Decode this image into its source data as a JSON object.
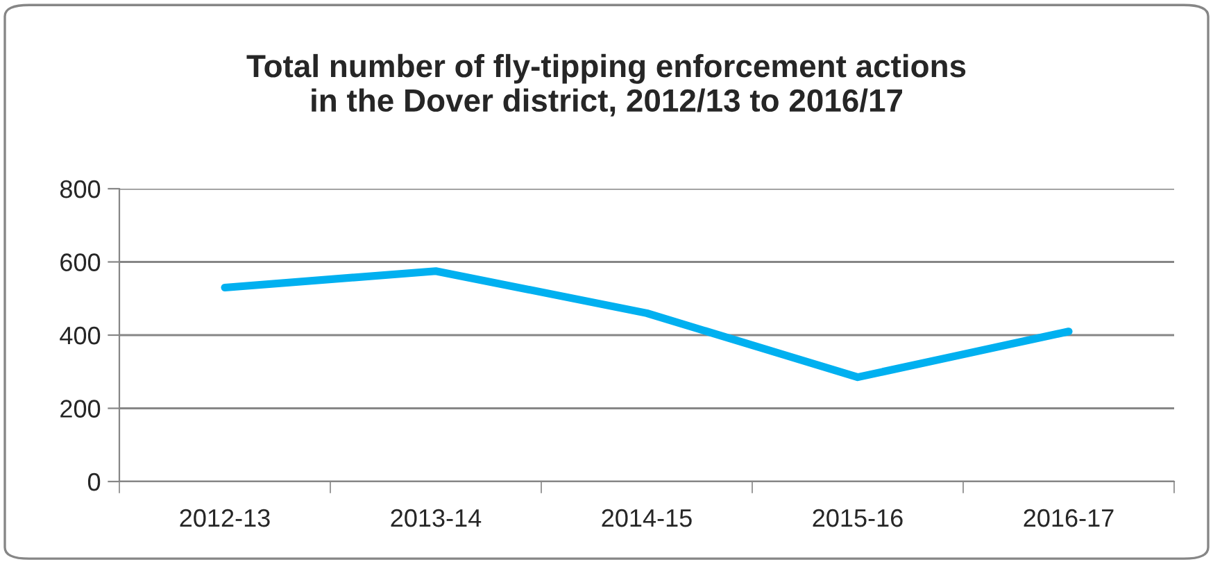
{
  "chart_data": {
    "type": "line",
    "title": "Total number of fly-tipping enforcement actions\nin the Dover district, 2012/13 to 2016/17",
    "categories": [
      "2012-13",
      "2013-14",
      "2014-15",
      "2015-16",
      "2016-17"
    ],
    "series": [
      {
        "color": "#00b0f0",
        "values": [
          530,
          575,
          460,
          285,
          410
        ]
      }
    ],
    "ylim": [
      0,
      800
    ],
    "yticks": [
      0,
      200,
      400,
      600,
      800
    ],
    "grid": "y",
    "marker": "none",
    "line_style": "solid"
  }
}
